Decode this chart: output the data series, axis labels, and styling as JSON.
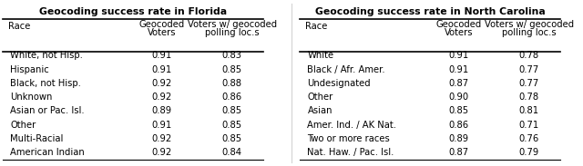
{
  "florida_title": "Geocoding success rate in Florida",
  "florida_col1": "Race",
  "florida_races": [
    "White, not Hisp.",
    "Hispanic",
    "Black, not Hisp.",
    "Unknown",
    "Asian or Pac. Isl.",
    "Other",
    "Multi-Racial",
    "American Indian"
  ],
  "florida_geocoded_voters": [
    0.91,
    0.91,
    0.92,
    0.92,
    0.89,
    0.91,
    0.92,
    0.92
  ],
  "florida_polling": [
    0.83,
    0.85,
    0.88,
    0.86,
    0.85,
    0.85,
    0.85,
    0.84
  ],
  "nc_title": "Geocoding success rate in North Carolina",
  "nc_col1": "Race",
  "nc_races": [
    "White",
    "Black / Afr. Amer.",
    "Undesignated",
    "Other",
    "Asian",
    "Amer. Ind. / AK Nat.",
    "Two or more races",
    "Nat. Haw. / Pac. Isl."
  ],
  "nc_geocoded_voters": [
    0.91,
    0.91,
    0.87,
    0.9,
    0.85,
    0.86,
    0.89,
    0.87
  ],
  "nc_polling": [
    0.78,
    0.77,
    0.77,
    0.78,
    0.81,
    0.71,
    0.76,
    0.79
  ],
  "title_fontsize": 7.8,
  "body_fontsize": 7.2,
  "header_fontsize": 7.2
}
